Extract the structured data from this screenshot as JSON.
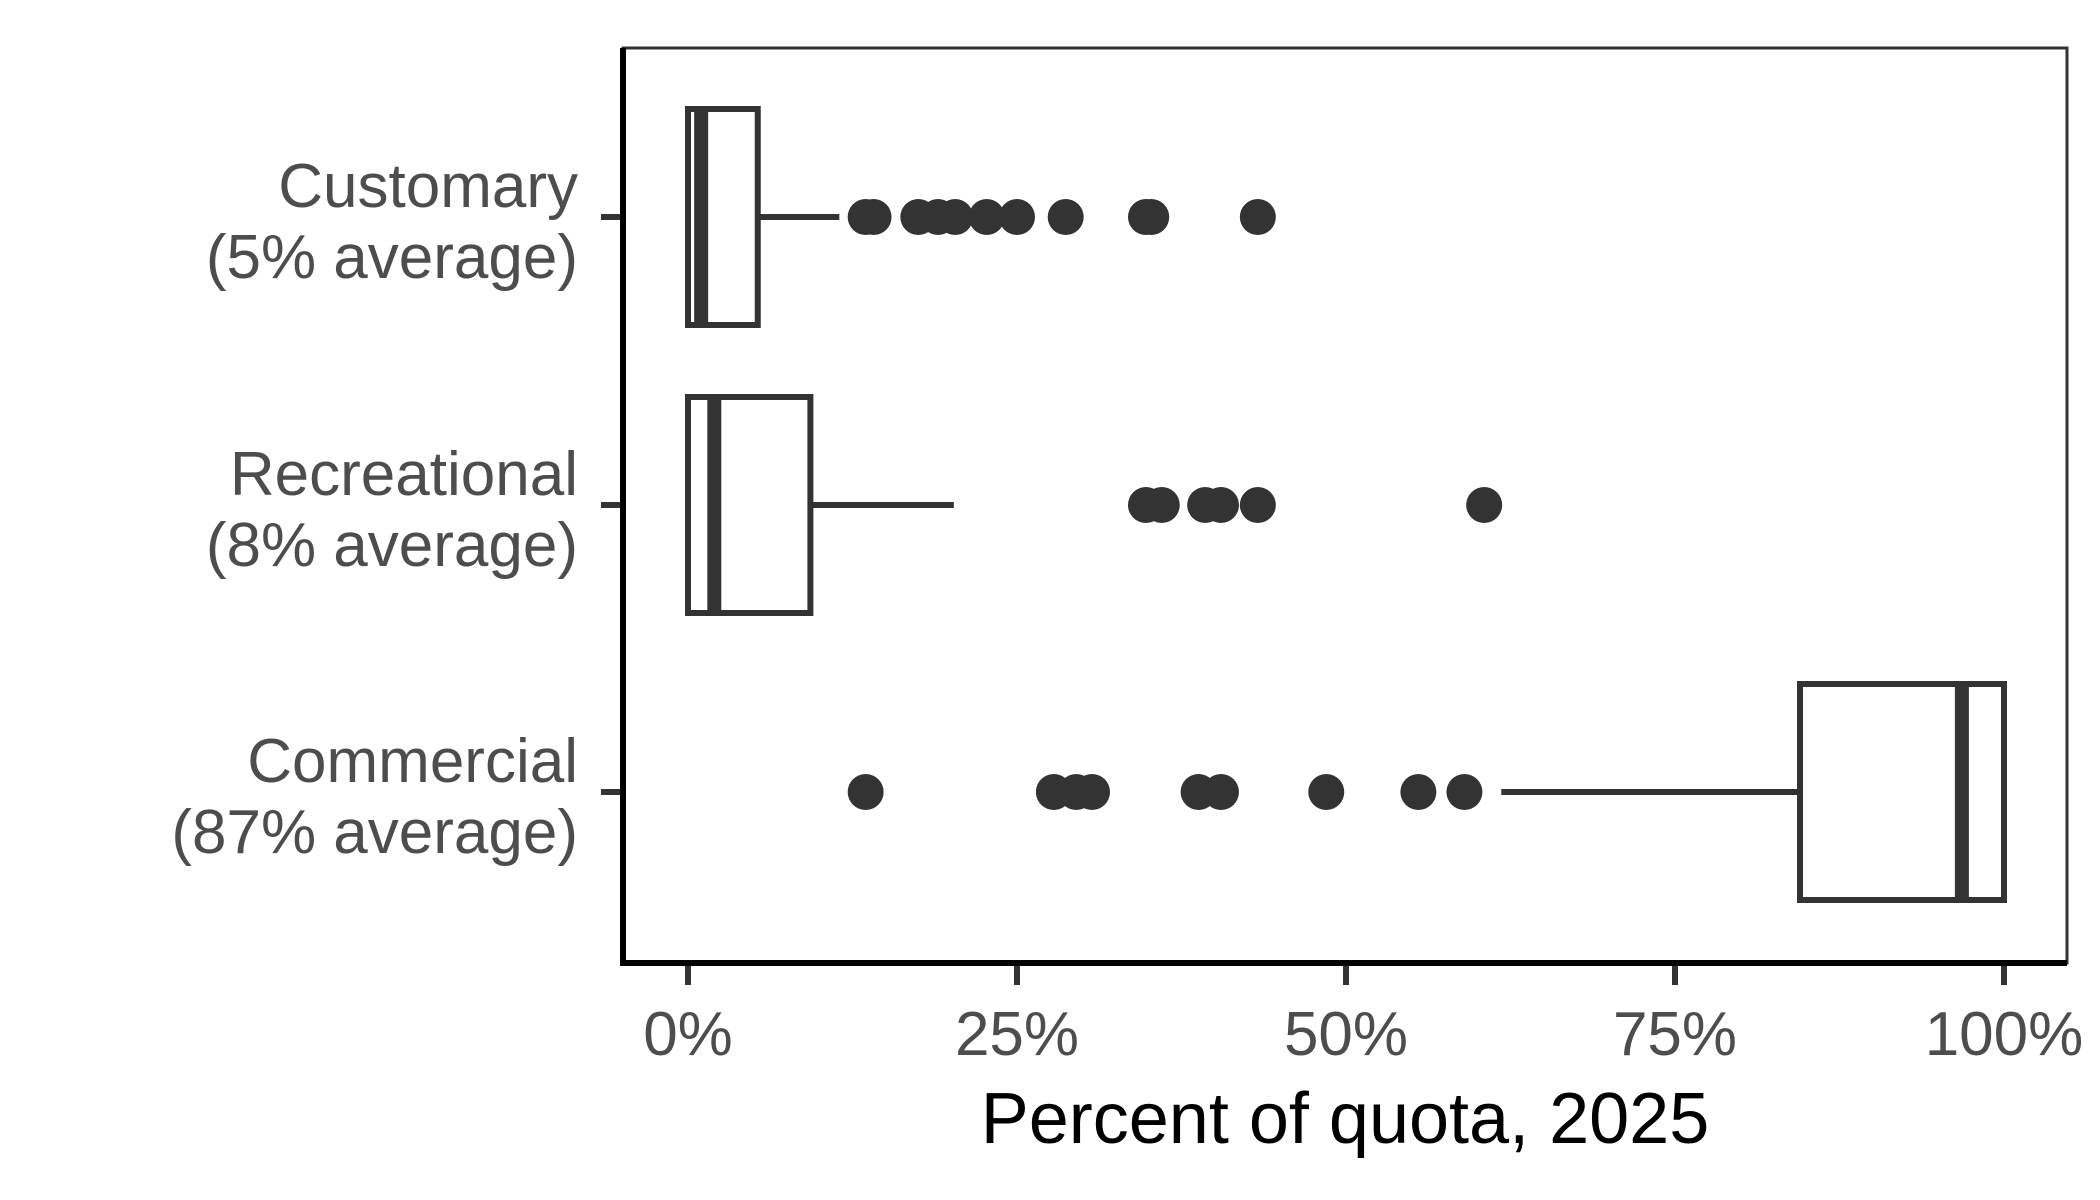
{
  "chart_data": {
    "type": "boxplot",
    "orientation": "horizontal",
    "title": "",
    "xlabel": "Percent of quota, 2025",
    "ylabel": "",
    "xlim": [
      -0.025,
      1.025
    ],
    "x_ticks": [
      0,
      0.25,
      0.5,
      0.75,
      1.0
    ],
    "x_tick_labels": [
      "0%",
      "25%",
      "50%",
      "75%",
      "100%"
    ],
    "grid": false,
    "legend": "none",
    "colors": {
      "box_stroke": "#333333",
      "box_fill": "#ffffff",
      "outlier": "#333333",
      "axis": "#000000",
      "label": "#4d4d4d"
    },
    "categories": [
      {
        "label_line1": "Customary",
        "label_line2": "(5% average)",
        "q1": 0.0,
        "median": 0.01,
        "q3": 0.053,
        "whisker_low": 0.0,
        "whisker_high": 0.115,
        "outliers": [
          0.135,
          0.141,
          0.175,
          0.19,
          0.203,
          0.227,
          0.25,
          0.287,
          0.348,
          0.352,
          0.433
        ]
      },
      {
        "label_line1": "Recreational",
        "label_line2": "(8% average)",
        "q1": 0.0,
        "median": 0.02,
        "q3": 0.093,
        "whisker_low": 0.0,
        "whisker_high": 0.202,
        "outliers": [
          0.348,
          0.36,
          0.393,
          0.405,
          0.433,
          0.605
        ]
      },
      {
        "label_line1": "Commercial",
        "label_line2": "(87% average)",
        "q1": 0.845,
        "median": 0.968,
        "q3": 1.0,
        "whisker_low": 0.618,
        "whisker_high": 1.0,
        "outliers": [
          0.135,
          0.278,
          0.295,
          0.307,
          0.388,
          0.405,
          0.485,
          0.555,
          0.59
        ]
      }
    ]
  }
}
